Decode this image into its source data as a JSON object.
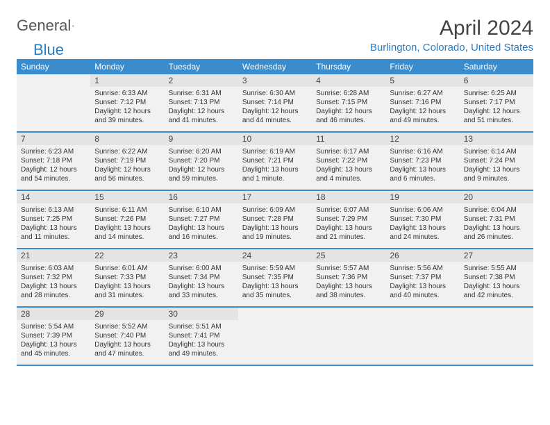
{
  "brand": {
    "part1": "General",
    "part2": "Blue"
  },
  "header": {
    "title": "April 2024",
    "location": "Burlington, Colorado, United States"
  },
  "colors": {
    "header_bg": "#3b8ccc",
    "day_bg": "#f1f1f1",
    "daynum_bg": "#e4e4e4",
    "brand_blue": "#2b7bbf"
  },
  "daysOfWeek": [
    "Sunday",
    "Monday",
    "Tuesday",
    "Wednesday",
    "Thursday",
    "Friday",
    "Saturday"
  ],
  "weeks": [
    [
      null,
      {
        "n": "1",
        "sr": "Sunrise: 6:33 AM",
        "ss": "Sunset: 7:12 PM",
        "dl": "Daylight: 12 hours and 39 minutes."
      },
      {
        "n": "2",
        "sr": "Sunrise: 6:31 AM",
        "ss": "Sunset: 7:13 PM",
        "dl": "Daylight: 12 hours and 41 minutes."
      },
      {
        "n": "3",
        "sr": "Sunrise: 6:30 AM",
        "ss": "Sunset: 7:14 PM",
        "dl": "Daylight: 12 hours and 44 minutes."
      },
      {
        "n": "4",
        "sr": "Sunrise: 6:28 AM",
        "ss": "Sunset: 7:15 PM",
        "dl": "Daylight: 12 hours and 46 minutes."
      },
      {
        "n": "5",
        "sr": "Sunrise: 6:27 AM",
        "ss": "Sunset: 7:16 PM",
        "dl": "Daylight: 12 hours and 49 minutes."
      },
      {
        "n": "6",
        "sr": "Sunrise: 6:25 AM",
        "ss": "Sunset: 7:17 PM",
        "dl": "Daylight: 12 hours and 51 minutes."
      }
    ],
    [
      {
        "n": "7",
        "sr": "Sunrise: 6:23 AM",
        "ss": "Sunset: 7:18 PM",
        "dl": "Daylight: 12 hours and 54 minutes."
      },
      {
        "n": "8",
        "sr": "Sunrise: 6:22 AM",
        "ss": "Sunset: 7:19 PM",
        "dl": "Daylight: 12 hours and 56 minutes."
      },
      {
        "n": "9",
        "sr": "Sunrise: 6:20 AM",
        "ss": "Sunset: 7:20 PM",
        "dl": "Daylight: 12 hours and 59 minutes."
      },
      {
        "n": "10",
        "sr": "Sunrise: 6:19 AM",
        "ss": "Sunset: 7:21 PM",
        "dl": "Daylight: 13 hours and 1 minute."
      },
      {
        "n": "11",
        "sr": "Sunrise: 6:17 AM",
        "ss": "Sunset: 7:22 PM",
        "dl": "Daylight: 13 hours and 4 minutes."
      },
      {
        "n": "12",
        "sr": "Sunrise: 6:16 AM",
        "ss": "Sunset: 7:23 PM",
        "dl": "Daylight: 13 hours and 6 minutes."
      },
      {
        "n": "13",
        "sr": "Sunrise: 6:14 AM",
        "ss": "Sunset: 7:24 PM",
        "dl": "Daylight: 13 hours and 9 minutes."
      }
    ],
    [
      {
        "n": "14",
        "sr": "Sunrise: 6:13 AM",
        "ss": "Sunset: 7:25 PM",
        "dl": "Daylight: 13 hours and 11 minutes."
      },
      {
        "n": "15",
        "sr": "Sunrise: 6:11 AM",
        "ss": "Sunset: 7:26 PM",
        "dl": "Daylight: 13 hours and 14 minutes."
      },
      {
        "n": "16",
        "sr": "Sunrise: 6:10 AM",
        "ss": "Sunset: 7:27 PM",
        "dl": "Daylight: 13 hours and 16 minutes."
      },
      {
        "n": "17",
        "sr": "Sunrise: 6:09 AM",
        "ss": "Sunset: 7:28 PM",
        "dl": "Daylight: 13 hours and 19 minutes."
      },
      {
        "n": "18",
        "sr": "Sunrise: 6:07 AM",
        "ss": "Sunset: 7:29 PM",
        "dl": "Daylight: 13 hours and 21 minutes."
      },
      {
        "n": "19",
        "sr": "Sunrise: 6:06 AM",
        "ss": "Sunset: 7:30 PM",
        "dl": "Daylight: 13 hours and 24 minutes."
      },
      {
        "n": "20",
        "sr": "Sunrise: 6:04 AM",
        "ss": "Sunset: 7:31 PM",
        "dl": "Daylight: 13 hours and 26 minutes."
      }
    ],
    [
      {
        "n": "21",
        "sr": "Sunrise: 6:03 AM",
        "ss": "Sunset: 7:32 PM",
        "dl": "Daylight: 13 hours and 28 minutes."
      },
      {
        "n": "22",
        "sr": "Sunrise: 6:01 AM",
        "ss": "Sunset: 7:33 PM",
        "dl": "Daylight: 13 hours and 31 minutes."
      },
      {
        "n": "23",
        "sr": "Sunrise: 6:00 AM",
        "ss": "Sunset: 7:34 PM",
        "dl": "Daylight: 13 hours and 33 minutes."
      },
      {
        "n": "24",
        "sr": "Sunrise: 5:59 AM",
        "ss": "Sunset: 7:35 PM",
        "dl": "Daylight: 13 hours and 35 minutes."
      },
      {
        "n": "25",
        "sr": "Sunrise: 5:57 AM",
        "ss": "Sunset: 7:36 PM",
        "dl": "Daylight: 13 hours and 38 minutes."
      },
      {
        "n": "26",
        "sr": "Sunrise: 5:56 AM",
        "ss": "Sunset: 7:37 PM",
        "dl": "Daylight: 13 hours and 40 minutes."
      },
      {
        "n": "27",
        "sr": "Sunrise: 5:55 AM",
        "ss": "Sunset: 7:38 PM",
        "dl": "Daylight: 13 hours and 42 minutes."
      }
    ],
    [
      {
        "n": "28",
        "sr": "Sunrise: 5:54 AM",
        "ss": "Sunset: 7:39 PM",
        "dl": "Daylight: 13 hours and 45 minutes."
      },
      {
        "n": "29",
        "sr": "Sunrise: 5:52 AM",
        "ss": "Sunset: 7:40 PM",
        "dl": "Daylight: 13 hours and 47 minutes."
      },
      {
        "n": "30",
        "sr": "Sunrise: 5:51 AM",
        "ss": "Sunset: 7:41 PM",
        "dl": "Daylight: 13 hours and 49 minutes."
      },
      null,
      null,
      null,
      null
    ]
  ]
}
